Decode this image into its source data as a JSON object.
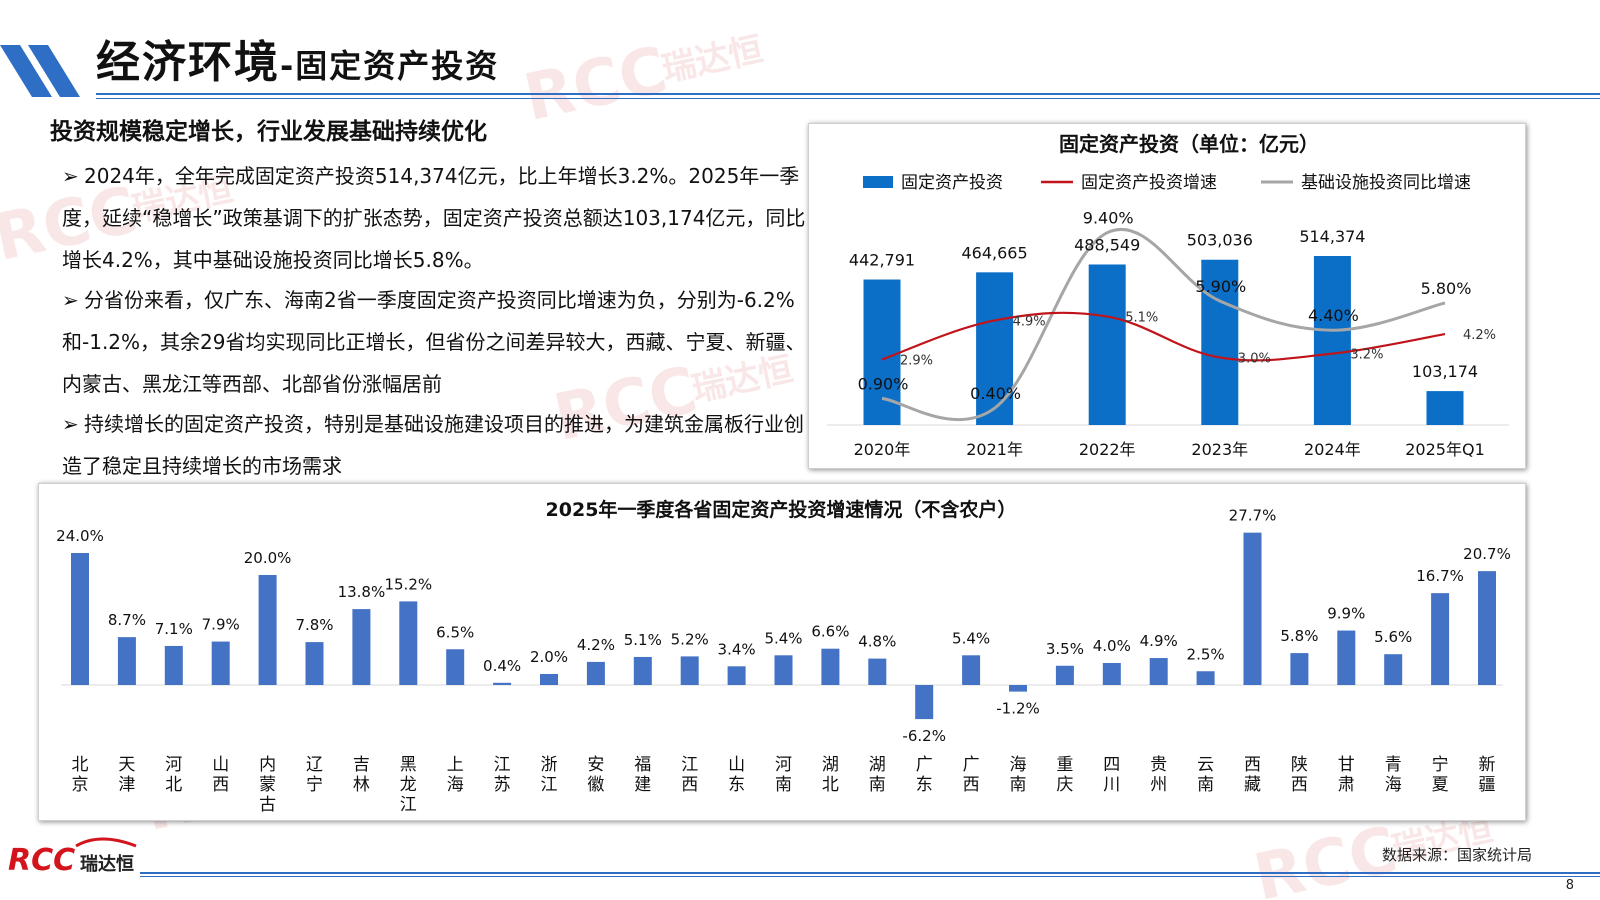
{
  "header": {
    "title": "经济环境",
    "subtitle": "-固定资产投资"
  },
  "section_title": "投资规模稳定增长，行业发展基础持续优化",
  "bullets": [
    {
      "marker": "➢",
      "text": "2024年，全年完成固定资产投资514,374亿元，比上年增长3.2%。2025年一季度，延续“稳增长”政策基调下的扩张态势，固定资产投资总额达103,174亿元，同比增长4.2%，其中基础设施投资同比增长5.8%。"
    },
    {
      "marker": "➢",
      "text": "分省份来看，仅广东、海南2省一季度固定资产投资同比增速为负，分别为-6.2%和-1.2%，其余29省均实现同比正增长，但省份之间差异较大，西藏、宁夏、新疆、内蒙古、黑龙江等西部、北部省份涨幅居前"
    },
    {
      "marker": "➢",
      "text": "持续增长的固定资产投资，特别是基础设施建设项目的推进，为建筑金属板行业创造了稳定且持续增长的市场需求"
    }
  ],
  "logo": {
    "text": "RCC",
    "text_cn": "瑞达恒"
  },
  "watermark": {
    "text": "RCC",
    "text_cn": "瑞达恒"
  },
  "footer": {
    "source": "数据来源：国家统计局",
    "page": "8"
  },
  "colors": {
    "accent": "#2e6fc5",
    "bar_blue": "#0b6fc8",
    "bar_province": "#4472c4",
    "line_red": "#c0141a",
    "line_gray": "#a6a6a6",
    "logo_red": "#d4141c"
  },
  "chart_data": [
    {
      "type": "bar",
      "title": "固定资产投资（单位：亿元）",
      "categories": [
        "2020年",
        "2021年",
        "2022年",
        "2023年",
        "2024年",
        "2025年Q1"
      ],
      "series": [
        {
          "name": "固定资产投资",
          "kind": "bar",
          "values": [
            442791,
            464665,
            488549,
            503036,
            514374,
            103174
          ],
          "labels": [
            "442,791",
            "464,665",
            "488,549",
            "503,036",
            "514,374",
            "103,174"
          ]
        },
        {
          "name": "固定资产投资增速",
          "kind": "line",
          "values": [
            2.9,
            4.9,
            5.1,
            3.0,
            3.2,
            4.2
          ],
          "labels": [
            "2.9%",
            "4.9%",
            "5.1%",
            "3.0%",
            "3.2%",
            "4.2%"
          ]
        },
        {
          "name": "基础设施投资同比增速",
          "kind": "line",
          "values": [
            0.9,
            0.4,
            9.4,
            5.9,
            4.4,
            5.8
          ],
          "labels": [
            "0.90%",
            "0.40%",
            "9.40%",
            "5.90%",
            "4.40%",
            "5.80%"
          ]
        }
      ],
      "legend_position": "top",
      "grid": false
    },
    {
      "type": "bar",
      "title": "2025年一季度各省固定资产投资增速情况（不含农户）",
      "categories": [
        "北京",
        "天津",
        "河北",
        "山西",
        "内蒙古",
        "辽宁",
        "吉林",
        "黑龙江",
        "上海",
        "江苏",
        "浙江",
        "安徽",
        "福建",
        "江西",
        "山东",
        "河南",
        "湖北",
        "湖南",
        "广东",
        "广西",
        "海南",
        "重庆",
        "四川",
        "贵州",
        "云南",
        "西藏",
        "陕西",
        "甘肃",
        "青海",
        "宁夏",
        "新疆"
      ],
      "values": [
        24.0,
        8.7,
        7.1,
        7.9,
        20.0,
        7.8,
        13.8,
        15.2,
        6.5,
        0.4,
        2.0,
        4.2,
        5.1,
        5.2,
        3.4,
        5.4,
        6.6,
        4.8,
        -6.2,
        5.4,
        -1.2,
        3.5,
        4.0,
        4.9,
        2.5,
        27.7,
        5.8,
        9.9,
        5.6,
        16.7,
        20.7
      ],
      "labels": [
        "24.0%",
        "8.7%",
        "7.1%",
        "7.9%",
        "20.0%",
        "7.8%",
        "13.8%",
        "15.2%",
        "6.5%",
        "0.4%",
        "2.0%",
        "4.2%",
        "5.1%",
        "5.2%",
        "3.4%",
        "5.4%",
        "6.6%",
        "4.8%",
        "-6.2%",
        "5.4%",
        "-1.2%",
        "3.5%",
        "4.0%",
        "4.9%",
        "2.5%",
        "27.7%",
        "5.8%",
        "9.9%",
        "5.6%",
        "16.7%",
        "20.7%"
      ],
      "grid": false
    }
  ]
}
